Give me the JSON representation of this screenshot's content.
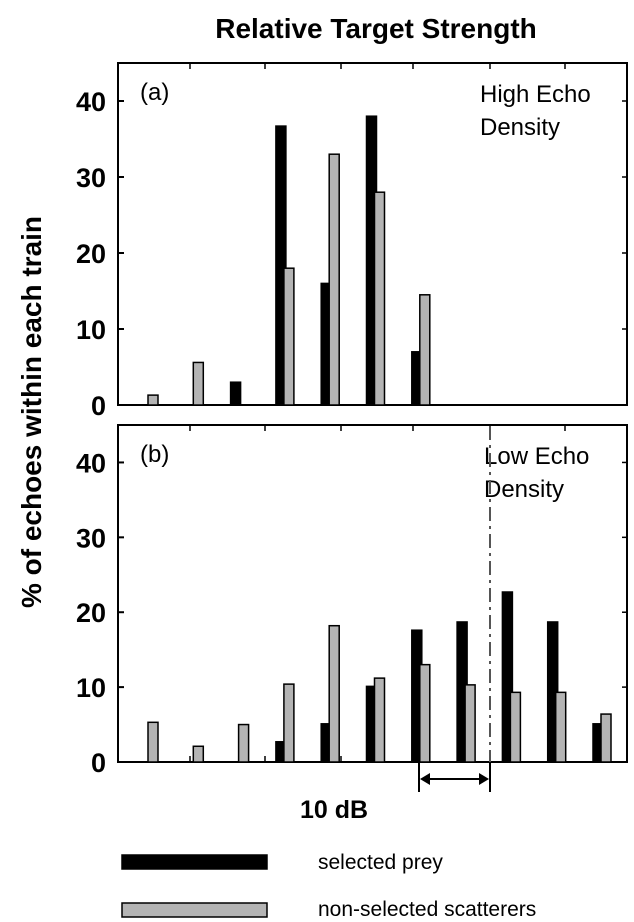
{
  "chart_data": [
    {
      "type": "bar",
      "panel_label": "(a)",
      "annotation_lines": [
        "High Echo",
        "Density"
      ],
      "yticks": [
        0,
        10,
        20,
        30,
        40
      ],
      "ylim": [
        0,
        45
      ],
      "series": [
        {
          "name": "selected prey",
          "color": "#000000",
          "values": [
            0,
            0,
            3,
            36.7,
            16,
            38,
            7,
            0,
            0,
            0,
            0
          ]
        },
        {
          "name": "non-selected scatterers",
          "color": "#b4b4b4",
          "values": [
            1.3,
            5.6,
            0,
            18,
            33,
            28,
            14.5,
            0,
            0,
            0,
            0
          ]
        }
      ]
    },
    {
      "type": "bar",
      "panel_label": "(b)",
      "annotation_lines": [
        "Low Echo",
        "Density"
      ],
      "yticks": [
        0,
        10,
        20,
        30,
        40
      ],
      "ylim": [
        0,
        45
      ],
      "series": [
        {
          "name": "selected prey",
          "color": "#000000",
          "values": [
            0,
            0,
            0,
            2.7,
            5.1,
            10.1,
            17.6,
            18.7,
            22.7,
            18.7,
            5.1
          ]
        },
        {
          "name": "non-selected scatterers",
          "color": "#b4b4b4",
          "values": [
            5.3,
            2.1,
            5,
            10.4,
            18.2,
            11.2,
            13,
            10.3,
            9.3,
            9.3,
            6.4
          ]
        }
      ]
    }
  ],
  "title": "Relative Target Strength",
  "ylabel": "% of echoes within each train",
  "scale_label": "10 dB",
  "legend": [
    {
      "label": "selected prey",
      "color": "#000000"
    },
    {
      "label": "non-selected scatterers",
      "color": "#b4b4b4"
    }
  ]
}
